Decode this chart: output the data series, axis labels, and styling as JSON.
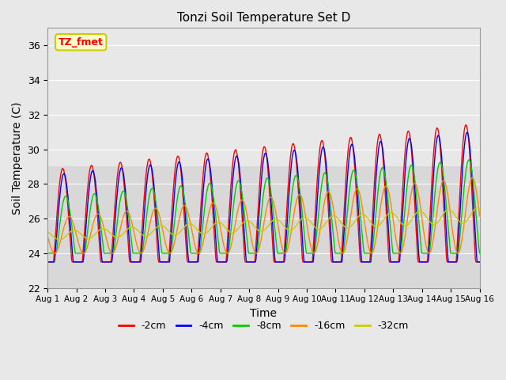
{
  "title": "Tonzi Soil Temperature Set D",
  "xlabel": "Time",
  "ylabel": "Soil Temperature (C)",
  "ylim": [
    22,
    37
  ],
  "bg_color": "#e8e8e8",
  "annotation_text": "TZ_fmet",
  "annotation_bg": "#ffffcc",
  "annotation_border": "#cccc00",
  "series": [
    {
      "label": "-2cm",
      "color": "#ff0000"
    },
    {
      "label": "-4cm",
      "color": "#0000ff"
    },
    {
      "label": "-8cm",
      "color": "#00cc00"
    },
    {
      "label": "-16cm",
      "color": "#ff8800"
    },
    {
      "label": "-32cm",
      "color": "#cccc00"
    }
  ],
  "xtick_labels": [
    "Aug 1",
    "Aug 2",
    "Aug 3",
    "Aug 4",
    "Aug 5",
    "Aug 6",
    "Aug 7",
    "Aug 8",
    "Aug 9",
    "Aug 10",
    "Aug 11",
    "Aug 12",
    "Aug 13",
    "Aug 14",
    "Aug 15",
    "Aug 16"
  ],
  "ytick_values": [
    22,
    24,
    26,
    28,
    30,
    32,
    34,
    36
  ]
}
